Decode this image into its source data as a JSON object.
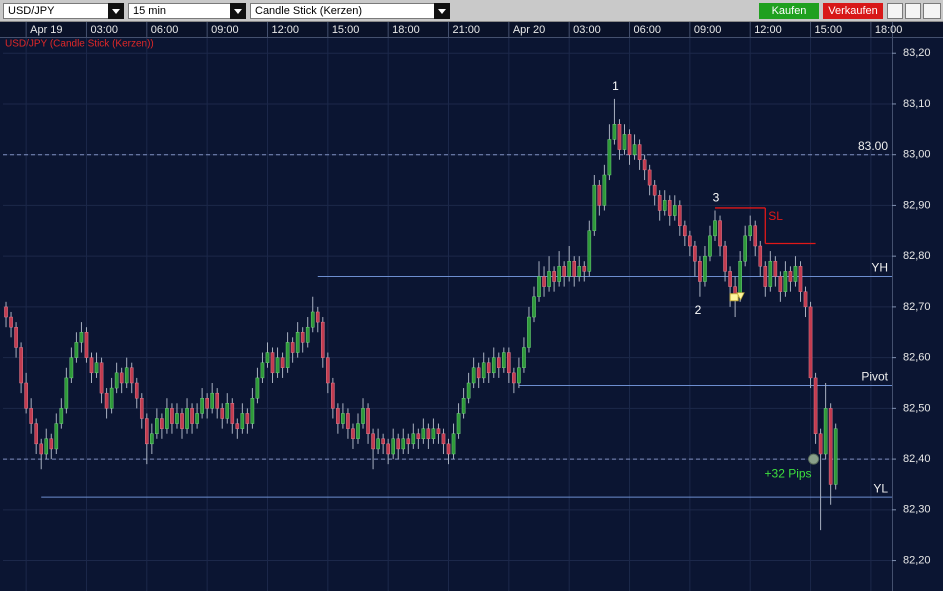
{
  "toolbar": {
    "symbol": "USD/JPY",
    "interval": "15 min",
    "chart_type": "Candle Stick (Kerzen)",
    "buy": "Kaufen",
    "sell": "Verkaufen"
  },
  "chart_data": {
    "type": "candlestick",
    "title": "USD/JPY (Candle Stick (Kerzen))",
    "up_color": "#2f9a3a",
    "down_color": "#c23c50",
    "xlim": [
      -0.6,
      176.2
    ],
    "xticks": [
      {
        "value": 4,
        "label": "Apr 19"
      },
      {
        "value": 16,
        "label": "03:00"
      },
      {
        "value": 28,
        "label": "06:00"
      },
      {
        "value": 40,
        "label": "09:00"
      },
      {
        "value": 52,
        "label": "12:00"
      },
      {
        "value": 64,
        "label": "15:00"
      },
      {
        "value": 76,
        "label": "18:00"
      },
      {
        "value": 88,
        "label": "21:00"
      },
      {
        "value": 100,
        "label": "Apr 20"
      },
      {
        "value": 112,
        "label": "03:00"
      },
      {
        "value": 124,
        "label": "06:00"
      },
      {
        "value": 136,
        "label": "09:00"
      },
      {
        "value": 148,
        "label": "12:00"
      },
      {
        "value": 160,
        "label": "15:00"
      },
      {
        "value": 172,
        "label": "18:00"
      }
    ],
    "ylim": [
      82.14,
      83.23
    ],
    "yticks": [
      {
        "value": 82.2,
        "label": "82,20"
      },
      {
        "value": 82.3,
        "label": "82,30"
      },
      {
        "value": 82.4,
        "label": "82,40"
      },
      {
        "value": 82.5,
        "label": "82,50"
      },
      {
        "value": 82.6,
        "label": "82,60"
      },
      {
        "value": 82.7,
        "label": "82,70"
      },
      {
        "value": 82.8,
        "label": "82,80"
      },
      {
        "value": 82.9,
        "label": "82,90"
      },
      {
        "value": 83.0,
        "label": "83,00"
      },
      {
        "value": 83.1,
        "label": "83,10"
      },
      {
        "value": 83.2,
        "label": "83,20"
      }
    ],
    "grid": true,
    "candles": [
      [
        82.7,
        82.71,
        82.66,
        82.68
      ],
      [
        82.68,
        82.69,
        82.64,
        82.66
      ],
      [
        82.66,
        82.67,
        82.6,
        82.62
      ],
      [
        82.62,
        82.63,
        82.53,
        82.55
      ],
      [
        82.55,
        82.57,
        82.49,
        82.5
      ],
      [
        82.5,
        82.52,
        82.45,
        82.47
      ],
      [
        82.47,
        82.48,
        82.41,
        82.43
      ],
      [
        82.43,
        82.44,
        82.38,
        82.41
      ],
      [
        82.41,
        82.46,
        82.4,
        82.44
      ],
      [
        82.44,
        82.45,
        82.4,
        82.42
      ],
      [
        82.42,
        82.49,
        82.41,
        82.47
      ],
      [
        82.47,
        82.52,
        82.46,
        82.5
      ],
      [
        82.5,
        82.58,
        82.49,
        82.56
      ],
      [
        82.56,
        82.62,
        82.55,
        82.6
      ],
      [
        82.6,
        82.65,
        82.59,
        82.63
      ],
      [
        82.63,
        82.67,
        82.61,
        82.65
      ],
      [
        82.65,
        82.66,
        82.59,
        82.6
      ],
      [
        82.6,
        82.61,
        82.55,
        82.57
      ],
      [
        82.57,
        82.61,
        82.56,
        82.59
      ],
      [
        82.59,
        82.6,
        82.51,
        82.53
      ],
      [
        82.53,
        82.54,
        82.48,
        82.5
      ],
      [
        82.5,
        82.56,
        82.49,
        82.54
      ],
      [
        82.54,
        82.59,
        82.53,
        82.57
      ],
      [
        82.57,
        82.58,
        82.53,
        82.55
      ],
      [
        82.55,
        82.6,
        82.54,
        82.58
      ],
      [
        82.58,
        82.59,
        82.53,
        82.55
      ],
      [
        82.55,
        82.56,
        82.5,
        82.52
      ],
      [
        82.52,
        82.53,
        82.46,
        82.48
      ],
      [
        82.48,
        82.49,
        82.39,
        82.43
      ],
      [
        82.43,
        82.47,
        82.41,
        82.45
      ],
      [
        82.45,
        82.5,
        82.44,
        82.48
      ],
      [
        82.48,
        82.49,
        82.44,
        82.46
      ],
      [
        82.46,
        82.52,
        82.45,
        82.5
      ],
      [
        82.5,
        82.51,
        82.45,
        82.47
      ],
      [
        82.47,
        82.51,
        82.46,
        82.49
      ],
      [
        82.49,
        82.5,
        82.44,
        82.46
      ],
      [
        82.46,
        82.52,
        82.45,
        82.5
      ],
      [
        82.5,
        82.51,
        82.45,
        82.47
      ],
      [
        82.47,
        82.51,
        82.46,
        82.49
      ],
      [
        82.49,
        82.54,
        82.48,
        82.52
      ],
      [
        82.52,
        82.53,
        82.48,
        82.5
      ],
      [
        82.5,
        82.55,
        82.49,
        82.53
      ],
      [
        82.53,
        82.54,
        82.48,
        82.5
      ],
      [
        82.5,
        82.51,
        82.46,
        82.48
      ],
      [
        82.48,
        82.53,
        82.47,
        82.51
      ],
      [
        82.51,
        82.52,
        82.45,
        82.47
      ],
      [
        82.47,
        82.48,
        82.44,
        82.46
      ],
      [
        82.46,
        82.51,
        82.45,
        82.49
      ],
      [
        82.49,
        82.5,
        82.45,
        82.47
      ],
      [
        82.47,
        82.54,
        82.46,
        82.52
      ],
      [
        82.52,
        82.58,
        82.51,
        82.56
      ],
      [
        82.56,
        82.61,
        82.55,
        82.59
      ],
      [
        82.59,
        82.63,
        82.58,
        82.61
      ],
      [
        82.61,
        82.62,
        82.55,
        82.57
      ],
      [
        82.57,
        82.62,
        82.56,
        82.6
      ],
      [
        82.6,
        82.61,
        82.56,
        82.58
      ],
      [
        82.58,
        82.65,
        82.57,
        82.63
      ],
      [
        82.63,
        82.64,
        82.59,
        82.61
      ],
      [
        82.61,
        82.67,
        82.6,
        82.65
      ],
      [
        82.65,
        82.66,
        82.61,
        82.63
      ],
      [
        82.63,
        82.68,
        82.62,
        82.66
      ],
      [
        82.66,
        82.72,
        82.65,
        82.69
      ],
      [
        82.69,
        82.7,
        82.65,
        82.67
      ],
      [
        82.67,
        82.68,
        82.58,
        82.6
      ],
      [
        82.6,
        82.61,
        82.53,
        82.55
      ],
      [
        82.55,
        82.56,
        82.48,
        82.5
      ],
      [
        82.5,
        82.51,
        82.45,
        82.47
      ],
      [
        82.47,
        82.51,
        82.46,
        82.49
      ],
      [
        82.49,
        82.5,
        82.44,
        82.46
      ],
      [
        82.46,
        82.47,
        82.42,
        82.44
      ],
      [
        82.44,
        82.49,
        82.43,
        82.47
      ],
      [
        82.47,
        82.52,
        82.46,
        82.5
      ],
      [
        82.5,
        82.51,
        82.43,
        82.45
      ],
      [
        82.45,
        82.46,
        82.38,
        82.42
      ],
      [
        82.42,
        82.46,
        82.41,
        82.44
      ],
      [
        82.44,
        82.45,
        82.41,
        82.43
      ],
      [
        82.43,
        82.44,
        82.39,
        82.41
      ],
      [
        82.41,
        82.46,
        82.4,
        82.44
      ],
      [
        82.44,
        82.45,
        82.4,
        82.42
      ],
      [
        82.42,
        82.46,
        82.41,
        82.44
      ],
      [
        82.44,
        82.45,
        82.41,
        82.43
      ],
      [
        82.43,
        82.47,
        82.42,
        82.45
      ],
      [
        82.45,
        82.46,
        82.42,
        82.44
      ],
      [
        82.44,
        82.48,
        82.43,
        82.46
      ],
      [
        82.46,
        82.47,
        82.42,
        82.44
      ],
      [
        82.44,
        82.48,
        82.43,
        82.46
      ],
      [
        82.46,
        82.47,
        82.43,
        82.45
      ],
      [
        82.45,
        82.46,
        82.41,
        82.43
      ],
      [
        82.43,
        82.44,
        82.39,
        82.41
      ],
      [
        82.41,
        82.47,
        82.4,
        82.45
      ],
      [
        82.45,
        82.51,
        82.44,
        82.49
      ],
      [
        82.49,
        82.54,
        82.48,
        82.52
      ],
      [
        82.52,
        82.57,
        82.51,
        82.55
      ],
      [
        82.55,
        82.6,
        82.54,
        82.58
      ],
      [
        82.58,
        82.59,
        82.54,
        82.56
      ],
      [
        82.56,
        82.61,
        82.55,
        82.59
      ],
      [
        82.59,
        82.6,
        82.55,
        82.57
      ],
      [
        82.57,
        82.62,
        82.56,
        82.6
      ],
      [
        82.6,
        82.61,
        82.56,
        82.58
      ],
      [
        82.58,
        82.62,
        82.57,
        82.61
      ],
      [
        82.61,
        82.62,
        82.55,
        82.57
      ],
      [
        82.57,
        82.58,
        82.53,
        82.55
      ],
      [
        82.55,
        82.6,
        82.54,
        82.58
      ],
      [
        82.58,
        82.64,
        82.57,
        82.62
      ],
      [
        82.62,
        82.7,
        82.61,
        82.68
      ],
      [
        82.68,
        82.74,
        82.67,
        82.72
      ],
      [
        82.72,
        82.79,
        82.71,
        82.76
      ],
      [
        82.76,
        82.78,
        82.72,
        82.74
      ],
      [
        82.74,
        82.8,
        82.73,
        82.77
      ],
      [
        82.77,
        82.78,
        82.73,
        82.75
      ],
      [
        82.75,
        82.81,
        82.74,
        82.78
      ],
      [
        82.78,
        82.79,
        82.74,
        82.76
      ],
      [
        82.76,
        82.82,
        82.75,
        82.79
      ],
      [
        82.79,
        82.8,
        82.74,
        82.76
      ],
      [
        82.76,
        82.8,
        82.75,
        82.78
      ],
      [
        82.78,
        82.79,
        82.75,
        82.77
      ],
      [
        82.77,
        82.87,
        82.76,
        82.85
      ],
      [
        82.85,
        82.96,
        82.84,
        82.94
      ],
      [
        82.94,
        82.95,
        82.88,
        82.9
      ],
      [
        82.9,
        82.98,
        82.89,
        82.96
      ],
      [
        82.96,
        83.06,
        82.95,
        83.03
      ],
      [
        83.03,
        83.11,
        83.02,
        83.06
      ],
      [
        83.06,
        83.07,
        82.99,
        83.01
      ],
      [
        83.01,
        83.06,
        83.0,
        83.04
      ],
      [
        83.04,
        83.05,
        82.98,
        83.0
      ],
      [
        83.0,
        83.04,
        82.99,
        83.02
      ],
      [
        83.02,
        83.03,
        82.97,
        82.99
      ],
      [
        82.99,
        83.0,
        82.95,
        82.97
      ],
      [
        82.97,
        82.98,
        82.92,
        82.94
      ],
      [
        82.94,
        82.95,
        82.9,
        82.92
      ],
      [
        82.92,
        82.93,
        82.87,
        82.89
      ],
      [
        82.89,
        82.93,
        82.88,
        82.91
      ],
      [
        82.91,
        82.92,
        82.86,
        82.88
      ],
      [
        82.88,
        82.92,
        82.87,
        82.9
      ],
      [
        82.9,
        82.91,
        82.84,
        82.86
      ],
      [
        82.86,
        82.87,
        82.82,
        82.84
      ],
      [
        82.84,
        82.85,
        82.8,
        82.82
      ],
      [
        82.82,
        82.83,
        82.76,
        82.79
      ],
      [
        82.79,
        82.8,
        82.72,
        82.75
      ],
      [
        82.75,
        82.82,
        82.74,
        82.8
      ],
      [
        82.8,
        82.86,
        82.79,
        82.84
      ],
      [
        82.84,
        82.89,
        82.83,
        82.87
      ],
      [
        82.87,
        82.88,
        82.8,
        82.82
      ],
      [
        82.82,
        82.83,
        82.75,
        82.77
      ],
      [
        82.77,
        82.78,
        82.7,
        82.74
      ],
      [
        82.74,
        82.76,
        82.68,
        82.72
      ],
      [
        82.72,
        82.81,
        82.71,
        82.79
      ],
      [
        82.79,
        82.86,
        82.78,
        82.84
      ],
      [
        82.84,
        82.88,
        82.83,
        82.86
      ],
      [
        82.86,
        82.87,
        82.8,
        82.82
      ],
      [
        82.82,
        82.83,
        82.76,
        82.78
      ],
      [
        82.78,
        82.79,
        82.72,
        82.74
      ],
      [
        82.74,
        82.81,
        82.73,
        82.79
      ],
      [
        82.79,
        82.8,
        82.74,
        82.76
      ],
      [
        82.76,
        82.77,
        82.71,
        82.73
      ],
      [
        82.73,
        82.79,
        82.72,
        82.77
      ],
      [
        82.77,
        82.78,
        82.73,
        82.75
      ],
      [
        82.75,
        82.8,
        82.74,
        82.78
      ],
      [
        82.78,
        82.79,
        82.71,
        82.73
      ],
      [
        82.73,
        82.74,
        82.68,
        82.7
      ],
      [
        82.7,
        82.71,
        82.54,
        82.56
      ],
      [
        82.56,
        82.57,
        82.43,
        82.45
      ],
      [
        82.45,
        82.46,
        82.26,
        82.41
      ],
      [
        82.41,
        82.55,
        82.4,
        82.5
      ],
      [
        82.5,
        82.51,
        82.31,
        82.35
      ],
      [
        82.35,
        82.47,
        82.34,
        82.46
      ]
    ],
    "levels": [
      {
        "value": 83.0,
        "label": "83.00",
        "start": -0.6,
        "style": "dashed"
      },
      {
        "value": 82.4,
        "start": -0.6,
        "style": "dashed"
      },
      {
        "value": 82.76,
        "label": "YH",
        "start": 62,
        "style": "solid"
      },
      {
        "value": 82.545,
        "label": "Pivot",
        "start": 102,
        "style": "solid"
      },
      {
        "value": 82.325,
        "label": "YL",
        "start": 7,
        "style": "solid"
      }
    ],
    "stop_loss": {
      "label": "SL",
      "color": "#e01818",
      "segments": [
        {
          "value": 82.895,
          "start": 141,
          "end": 151
        },
        {
          "value": 82.825,
          "start": 151,
          "end": 161
        }
      ]
    },
    "points": [
      {
        "label": "1",
        "index": 121,
        "value": 83.11,
        "position": "above"
      },
      {
        "label": "2",
        "index": 138,
        "value": 82.72,
        "position": "below"
      },
      {
        "label": "3",
        "index": 141,
        "value": 82.89,
        "position": "above"
      }
    ],
    "trade": {
      "label": "+32 Pips",
      "color": "#3ee03e",
      "entry": {
        "index": 145,
        "value": 82.72
      },
      "exit": {
        "index": 161,
        "value": 82.4
      }
    }
  }
}
